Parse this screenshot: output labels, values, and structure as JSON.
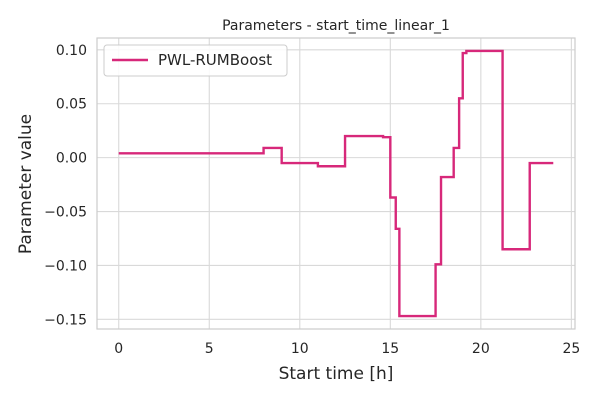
{
  "chart_data": {
    "type": "line",
    "title": "Parameters - start_time_linear_1",
    "xlabel": "Start time [h]",
    "ylabel": "Parameter value",
    "xlim": [
      -1.2,
      25.2
    ],
    "ylim": [
      -0.159,
      0.111
    ],
    "xticks": [
      0,
      5,
      10,
      15,
      20,
      25
    ],
    "xtick_labels": [
      "0",
      "5",
      "10",
      "15",
      "20",
      "25"
    ],
    "yticks": [
      -0.15,
      -0.1,
      -0.05,
      0.0,
      0.05,
      0.1
    ],
    "ytick_labels": [
      "−0.15",
      "−0.10",
      "−0.05",
      "0.00",
      "0.05",
      "0.10"
    ],
    "grid": true,
    "legend_position": "top-left",
    "step": true,
    "series": [
      {
        "name": "PWL-RUMBoost",
        "color": "#d7287a",
        "x": [
          0,
          8,
          9,
          11,
          12.5,
          14.6,
          15,
          15.3,
          15.5,
          17.5,
          17.8,
          18.5,
          18.8,
          19,
          19.2,
          21.2,
          22.7,
          24
        ],
        "y": [
          0.004,
          0.009,
          -0.005,
          -0.008,
          0.02,
          0.019,
          -0.037,
          -0.066,
          -0.147,
          -0.099,
          -0.018,
          0.009,
          0.055,
          0.097,
          0.099,
          -0.085,
          -0.005,
          -0.005
        ]
      }
    ]
  }
}
